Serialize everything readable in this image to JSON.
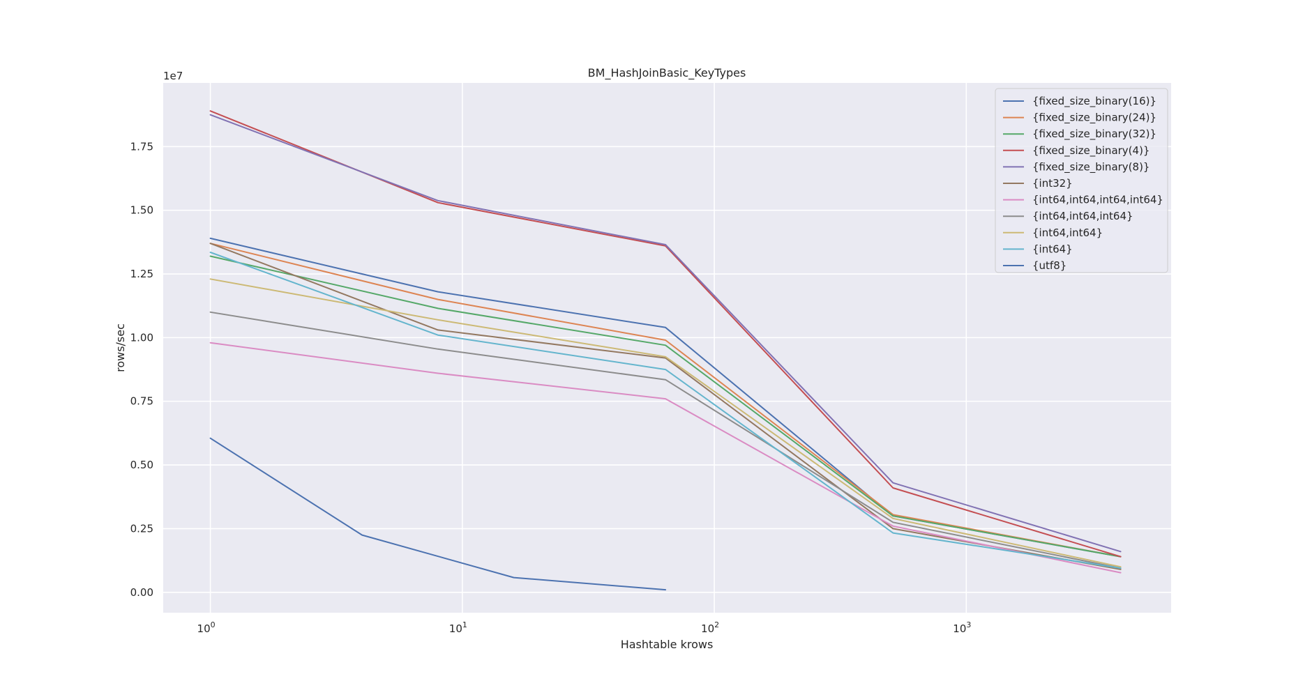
{
  "chart_data": {
    "type": "line",
    "title": "BM_HashJoinBasic_KeyTypes",
    "xlabel": "Hashtable krows",
    "ylabel": "rows/sec",
    "x_scale": "log",
    "xlim": [
      0.65,
      6500
    ],
    "ylim": [
      -800000,
      20000000
    ],
    "y_offset_label": "1e7",
    "y_ticks": [
      0,
      2500000,
      5000000,
      7500000,
      10000000,
      12500000,
      15000000,
      17500000
    ],
    "y_tick_labels": [
      "0.00",
      "0.25",
      "0.50",
      "0.75",
      "1.00",
      "1.25",
      "1.50",
      "1.75"
    ],
    "x_ticks": [
      1,
      10,
      100,
      1000
    ],
    "x_tick_base": "10",
    "x_tick_exps": [
      "0",
      "1",
      "2",
      "3"
    ],
    "grid": true,
    "legend_position": "top-right",
    "series": [
      {
        "name": "{fixed_size_binary(16)}",
        "color": "#4c72b0",
        "x": [
          1,
          8,
          64,
          512,
          4096
        ],
        "values": [
          13900000,
          11800000,
          10400000,
          3000000,
          1400000
        ]
      },
      {
        "name": "{fixed_size_binary(24)}",
        "color": "#dd8452",
        "x": [
          1,
          8,
          64,
          512,
          4096
        ],
        "values": [
          13700000,
          11500000,
          9900000,
          3050000,
          1400000
        ]
      },
      {
        "name": "{fixed_size_binary(32)}",
        "color": "#55a868",
        "x": [
          1,
          8,
          64,
          512,
          4096
        ],
        "values": [
          13200000,
          11150000,
          9700000,
          3000000,
          1400000
        ]
      },
      {
        "name": "{fixed_size_binary(4)}",
        "color": "#c44e52",
        "x": [
          1,
          8,
          64,
          512,
          4096
        ],
        "values": [
          18900000,
          15300000,
          13600000,
          4100000,
          1400000
        ]
      },
      {
        "name": "{fixed_size_binary(8)}",
        "color": "#8172b3",
        "x": [
          1,
          8,
          64,
          512,
          4096
        ],
        "values": [
          18750000,
          15380000,
          13650000,
          4300000,
          1600000
        ]
      },
      {
        "name": "{int32}",
        "color": "#937860",
        "x": [
          1,
          8,
          64,
          512,
          4096
        ],
        "values": [
          13700000,
          10300000,
          9200000,
          2500000,
          900000
        ]
      },
      {
        "name": "{int64,int64,int64,int64}",
        "color": "#da8bc3",
        "x": [
          1,
          8,
          64,
          512,
          4096
        ],
        "values": [
          9800000,
          8600000,
          7600000,
          2600000,
          770000
        ]
      },
      {
        "name": "{int64,int64,int64}",
        "color": "#8c8c8c",
        "x": [
          1,
          8,
          64,
          512,
          4096
        ],
        "values": [
          11000000,
          9550000,
          8350000,
          2750000,
          950000
        ]
      },
      {
        "name": "{int64,int64}",
        "color": "#ccb974",
        "x": [
          1,
          8,
          64,
          512,
          4096
        ],
        "values": [
          12300000,
          10700000,
          9250000,
          2900000,
          1000000
        ]
      },
      {
        "name": "{int64}",
        "color": "#64b5cd",
        "x": [
          1,
          8,
          64,
          512,
          4096
        ],
        "values": [
          13350000,
          10100000,
          8750000,
          2330000,
          950000
        ]
      },
      {
        "name": "{utf8}",
        "color": "#4c72b0",
        "x": [
          1,
          4,
          16,
          64
        ],
        "values": [
          6050000,
          2250000,
          580000,
          100000
        ]
      }
    ]
  }
}
